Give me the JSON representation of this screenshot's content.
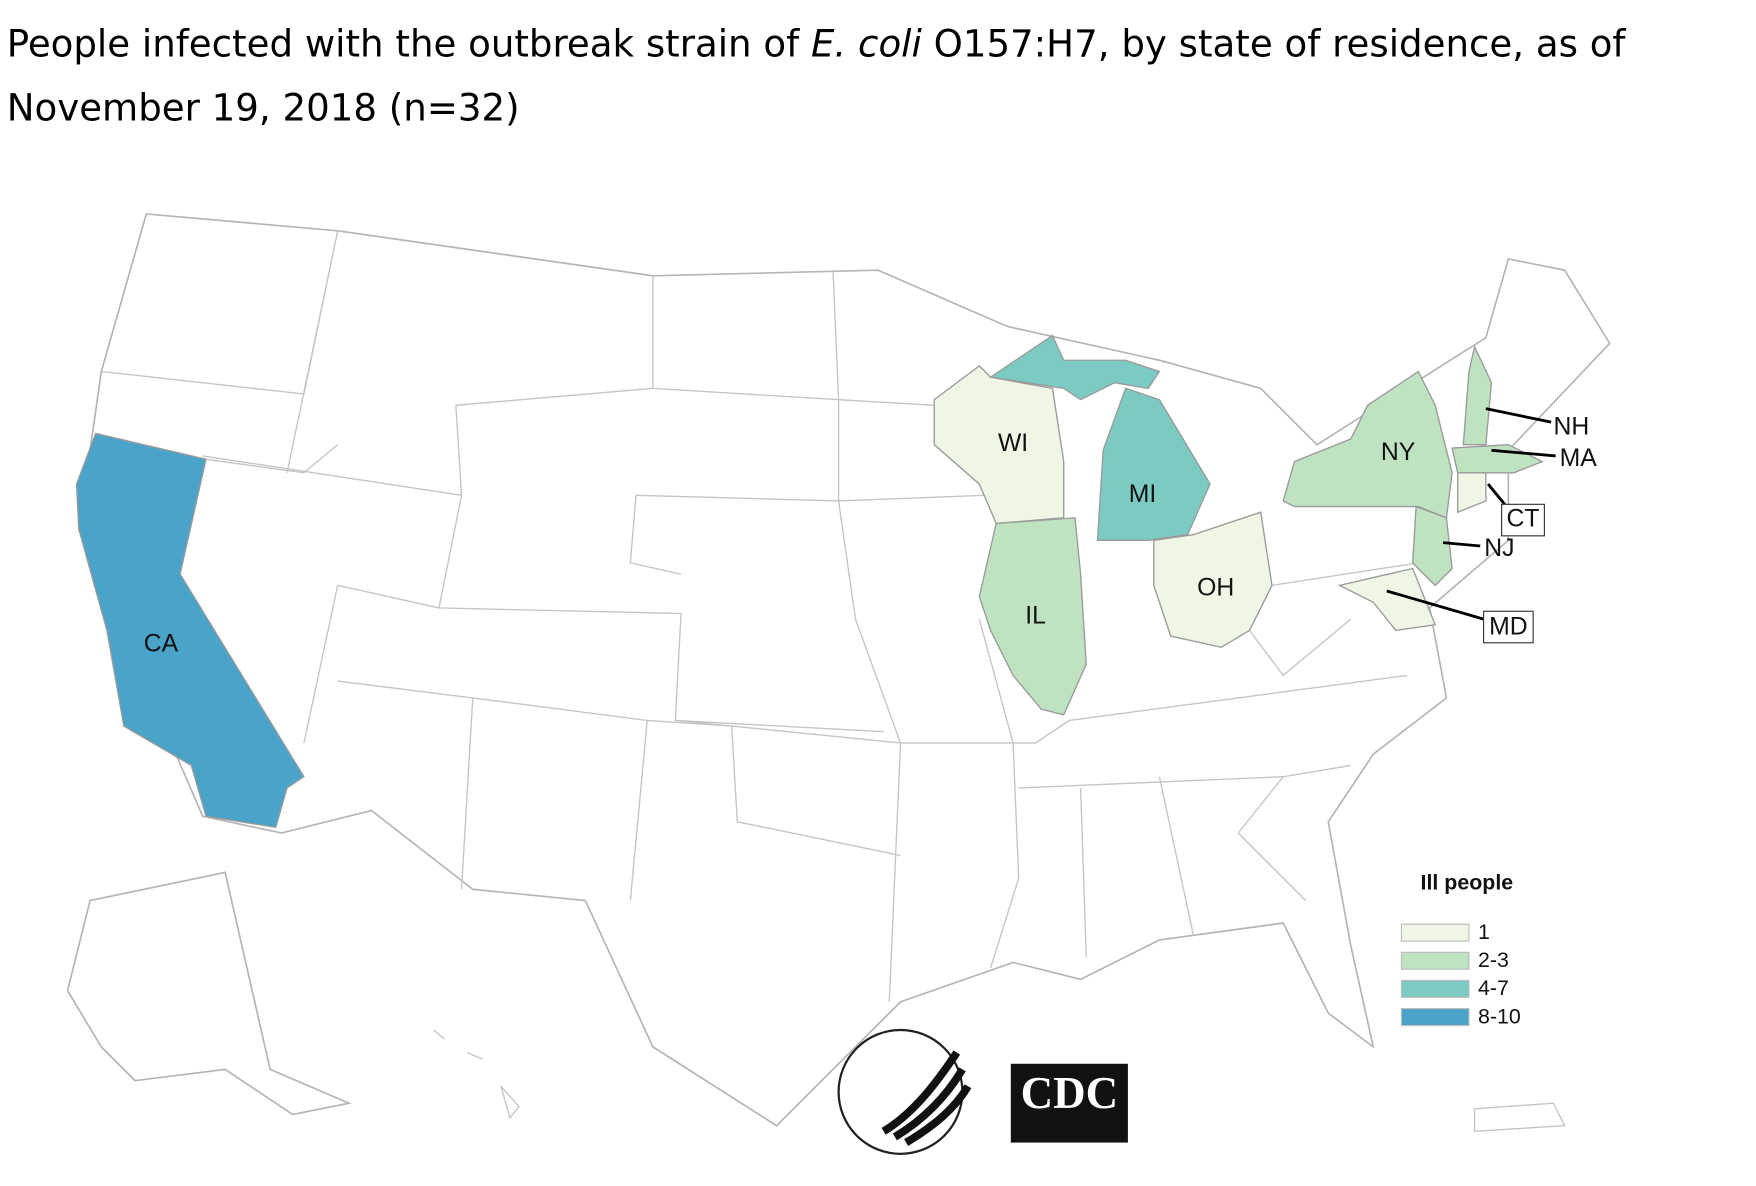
{
  "title": [
    "People infected with the outbreak strain of ",
    "E. coli",
    " O157:H7, by state of residence, as of",
    "November 19, 2018 (n=32)"
  ],
  "legend": {
    "title": "Ill people",
    "items": [
      {
        "label": "1",
        "color": "#eff6e6",
        "states": [
          "WI",
          "OH",
          "CT",
          "MD"
        ]
      },
      {
        "label": "2-3",
        "color": "#bfe3c0",
        "states": [
          "IL",
          "NY",
          "NJ",
          "NH",
          "MA"
        ]
      },
      {
        "label": "4-7",
        "color": "#7ccbc3",
        "states": [
          "MI"
        ]
      },
      {
        "label": "8-10",
        "color": "#4aa3c8",
        "states": [
          "CA"
        ]
      }
    ]
  },
  "logo": "CDC"
}
